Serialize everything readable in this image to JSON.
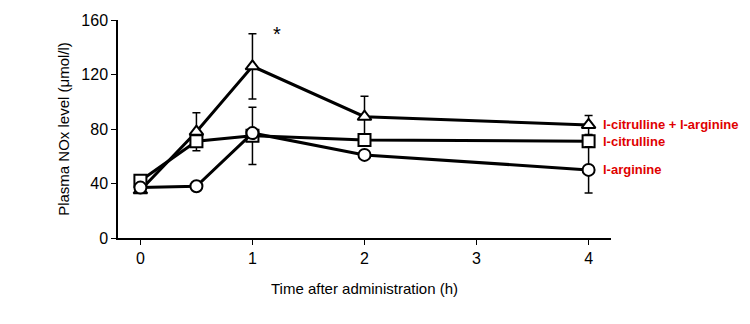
{
  "chart_data": {
    "type": "line",
    "x_label": "Time after administration (h)",
    "y_label": "Plasma NOx level (μmol/l)",
    "xlim": [
      -0.2,
      4.2
    ],
    "xticks": [
      0,
      1,
      2,
      3,
      4
    ],
    "ylim": [
      0,
      160
    ],
    "yticks": [
      0,
      40,
      80,
      120,
      160
    ],
    "grid": false,
    "series": [
      {
        "name": "l-citrulline + l-arginine",
        "color": "#000000",
        "marker": "triangle",
        "x": [
          0,
          0.5,
          1,
          2,
          4
        ],
        "values": [
          35,
          78,
          126,
          89,
          83
        ],
        "errors": [
          0,
          14,
          24,
          15,
          7
        ]
      },
      {
        "name": "l-citrulline",
        "color": "#000000",
        "marker": "square",
        "x": [
          0,
          0.5,
          1,
          2,
          4
        ],
        "values": [
          42,
          71,
          75,
          72,
          71
        ],
        "errors": [
          0,
          0,
          21,
          0,
          0
        ]
      },
      {
        "name": "l-arginine",
        "color": "#000000",
        "marker": "circle",
        "x": [
          0,
          0.5,
          1,
          2,
          4
        ],
        "values": [
          37,
          38,
          77,
          61,
          50
        ],
        "errors": [
          0,
          0,
          0,
          0,
          17
        ]
      }
    ],
    "annotations": [
      {
        "text": "*",
        "x": 1.22,
        "y": 150
      }
    ]
  }
}
